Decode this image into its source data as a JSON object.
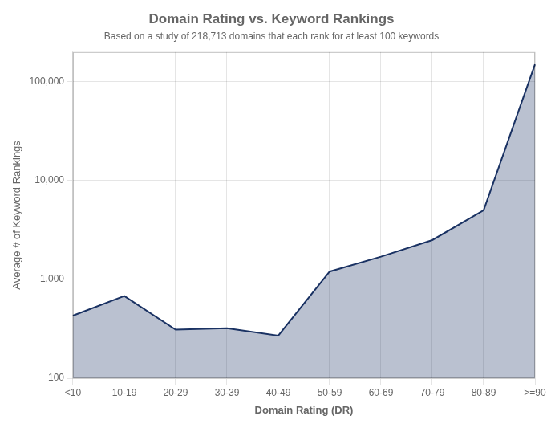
{
  "chart_data": {
    "type": "line",
    "title": "Domain Rating vs. Keyword Rankings",
    "subtitle": "Based on a study of 218,713 domains that each rank for at least 100 keywords",
    "xlabel": "Domain Rating (DR)",
    "ylabel": "Average # of Keyword Rankings",
    "categories": [
      "<10",
      "10-19",
      "20-29",
      "30-39",
      "40-49",
      "50-59",
      "60-69",
      "70-79",
      "80-89",
      ">=90"
    ],
    "values": [
      430,
      680,
      310,
      320,
      270,
      1200,
      1700,
      2500,
      5000,
      150000
    ],
    "color": "#1a3263",
    "log": "y",
    "ylim": [
      100,
      200000
    ],
    "yticks": [
      100,
      {
        "value": 1000,
        "label": "1,000"
      },
      {
        "value": 10000,
        "label": "10,000"
      },
      {
        "value": 100000,
        "label": "100,000"
      }
    ],
    "grid": true
  }
}
